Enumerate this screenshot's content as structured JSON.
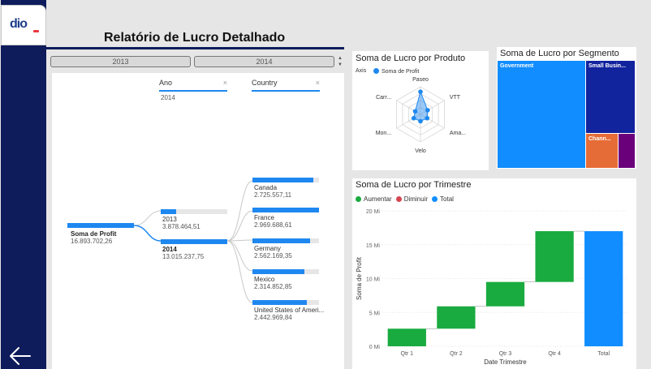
{
  "app": {
    "logo_text": "dio",
    "report_title": "Relatório de Lucro Detalhado",
    "back_icon": "arrow-left-icon"
  },
  "slicer": {
    "years": [
      "2013",
      "2014"
    ],
    "scroll_up": "▲",
    "scroll_down": "▼"
  },
  "decomposition_tree": {
    "root_label": "Soma de Profit",
    "root_value": "16.893.702,26",
    "levels": [
      {
        "name": "Ano",
        "selected": "2014"
      },
      {
        "name": "Country",
        "selected": ""
      }
    ],
    "close_glyph": "×",
    "year_nodes": [
      {
        "label": "2013",
        "value": "3.878.464,51",
        "fill": 0.23
      },
      {
        "label": "2014",
        "value": "13.015.237,75",
        "fill": 1.0
      }
    ],
    "country_nodes": [
      {
        "label": "Canada",
        "value": "2.725.557,11",
        "fill": 0.92
      },
      {
        "label": "France",
        "value": "2.969.688,61",
        "fill": 1.0
      },
      {
        "label": "Germany",
        "value": "2.562.169,35",
        "fill": 0.86
      },
      {
        "label": "Mexico",
        "value": "2.314.852,85",
        "fill": 0.78
      },
      {
        "label": "United States of Ameri...",
        "value": "2.442.969,84",
        "fill": 0.82
      }
    ]
  },
  "radar": {
    "title": "Soma de Lucro por Produto",
    "legend_axis": "Axis",
    "legend_series": "Soma de Profit",
    "axes": [
      "Paseo",
      "VTT",
      "Ama...",
      "Velo",
      "Mon...",
      "Carr..."
    ],
    "values": [
      0.82,
      0.3,
      0.28,
      0.25,
      0.28,
      0.22
    ],
    "color": "#1e88f0"
  },
  "treemap": {
    "title": "Soma de Lucro por Segmento",
    "cells": [
      {
        "label": "Government",
        "color": "#118dff"
      },
      {
        "label": "Small Busin...",
        "color": "#12239e"
      },
      {
        "label": "Chann...",
        "color": "#e66c37"
      },
      {
        "label": "",
        "color": "#6b007b"
      }
    ]
  },
  "waterfall": {
    "title": "Soma de Lucro por Trimestre",
    "legend": [
      {
        "label": "Aumentar",
        "color": "#1aab40"
      },
      {
        "label": "Diminuir",
        "color": "#d64550"
      },
      {
        "label": "Total",
        "color": "#118dff"
      }
    ]
  },
  "chart_data": {
    "type": "bar",
    "subtype": "waterfall",
    "title": "Soma de Lucro por Trimestre",
    "categories": [
      "Qtr 1",
      "Qtr 2",
      "Qtr 3",
      "Qtr 4",
      "Total"
    ],
    "series": [
      {
        "name": "Aumentar",
        "values": [
          2.6,
          3.3,
          3.6,
          7.5,
          null
        ]
      },
      {
        "name": "Total",
        "values": [
          null,
          null,
          null,
          null,
          17.0
        ]
      }
    ],
    "starts": [
      0,
      2.6,
      5.9,
      9.5,
      0
    ],
    "yticks": [
      0,
      5,
      10,
      15,
      20
    ],
    "ytick_labels": [
      "0 Mi",
      "5 Mi",
      "10 Mi",
      "15 Mi",
      "20 Mi"
    ],
    "xlabel": "Date Trimestre",
    "ylabel": "Soma de Profit",
    "ylim": [
      0,
      20
    ]
  }
}
